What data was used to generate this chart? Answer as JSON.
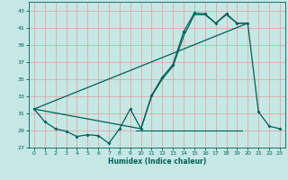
{
  "xlabel": "Humidex (Indice chaleur)",
  "bg_color": "#c5e8e5",
  "grid_color": "#dca8a8",
  "line_color": "#006055",
  "xlim": [
    -0.5,
    23.5
  ],
  "ylim": [
    27,
    44
  ],
  "yticks": [
    27,
    29,
    31,
    33,
    35,
    37,
    39,
    41,
    43
  ],
  "xticks": [
    0,
    1,
    2,
    3,
    4,
    5,
    6,
    7,
    8,
    9,
    10,
    11,
    12,
    13,
    14,
    15,
    16,
    17,
    18,
    19,
    20,
    21,
    22,
    23
  ],
  "series1_x": [
    0,
    1,
    2,
    3,
    4,
    5,
    6,
    7,
    8,
    9,
    10,
    11,
    12,
    13,
    14,
    15,
    16,
    17,
    18,
    19,
    20,
    21,
    22,
    23
  ],
  "series1_y": [
    31.5,
    30.0,
    29.2,
    28.9,
    28.3,
    28.5,
    28.4,
    27.5,
    29.2,
    31.5,
    29.2,
    33.1,
    35.2,
    36.7,
    40.5,
    42.7,
    42.6,
    41.5,
    42.6,
    41.5,
    41.5,
    31.2,
    29.5,
    29.2
  ],
  "series2_x": [
    0,
    10,
    11,
    12,
    13,
    14,
    15,
    16,
    17,
    18,
    19,
    20
  ],
  "series2_y": [
    31.5,
    29.2,
    33.0,
    35.0,
    36.5,
    40.0,
    42.5,
    42.5,
    41.5,
    42.5,
    41.5,
    41.5
  ],
  "series3_x": [
    0,
    20
  ],
  "series3_y": [
    31.5,
    41.5
  ],
  "hline_y": 29.0,
  "hline_x_start": 9.5,
  "hline_x_end": 19.5
}
